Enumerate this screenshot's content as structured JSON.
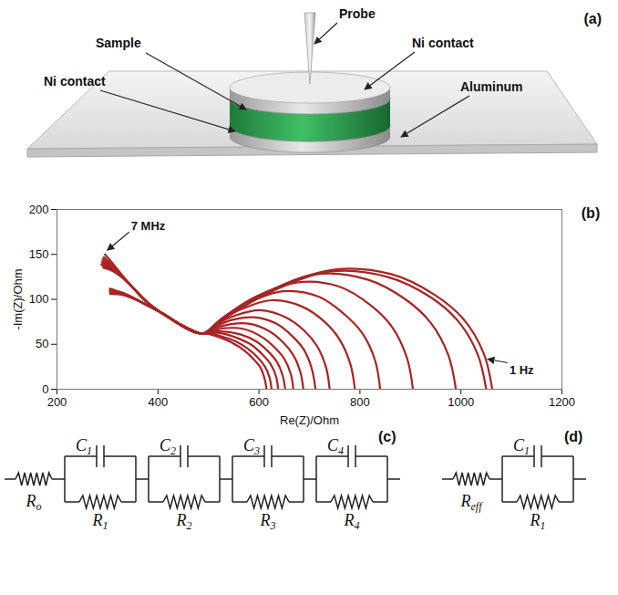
{
  "illustration": {
    "label": "(a)",
    "callouts": [
      {
        "text": "Probe"
      },
      {
        "text": "Ni contact"
      },
      {
        "text": "Sample"
      },
      {
        "text": "Ni contact"
      },
      {
        "text": "Aluminum"
      }
    ]
  },
  "chart_data": {
    "type": "line",
    "panel_label": "(b)",
    "x_label": "Re(Z)/Ohm",
    "y_label": "-Im(Z)/Ohm",
    "xlim": [
      200,
      1200
    ],
    "xticks": [
      200,
      400,
      600,
      800,
      1000,
      1200
    ],
    "ylim": [
      0,
      200
    ],
    "yticks": [
      0,
      50,
      100,
      150,
      200
    ],
    "grid": false,
    "annotations": [
      {
        "text": "7 MHz",
        "x": 297,
        "y": 152
      },
      {
        "text": "1 Hz",
        "x": 1050,
        "y": 35
      }
    ],
    "series": [
      {
        "color": "#a82424",
        "x": [
          295,
          312,
          342,
          380,
          420,
          455,
          475,
          490,
          503,
          521,
          546,
          571,
          590,
          603,
          611,
          615
        ],
        "values": [
          150,
          139,
          118,
          96,
          80,
          68,
          63,
          62,
          61,
          58,
          52,
          43,
          33,
          24,
          12,
          0
        ]
      },
      {
        "color": "#a82424",
        "x": [
          293,
          312,
          342,
          380,
          420,
          455,
          475,
          490,
          504,
          524,
          551,
          578,
          598,
          612,
          621,
          625
        ],
        "values": [
          147,
          137,
          118,
          96,
          80,
          68,
          63,
          62,
          62,
          59,
          54,
          45,
          35,
          25,
          13,
          0
        ]
      },
      {
        "color": "#a82424",
        "x": [
          291,
          312,
          342,
          380,
          420,
          455,
          475,
          490,
          505,
          527,
          557,
          586,
          608,
          623,
          634,
          638
        ],
        "values": [
          145,
          136,
          118,
          96,
          80,
          68,
          63,
          62,
          63,
          62,
          57,
          49,
          38,
          28,
          14,
          0
        ]
      },
      {
        "color": "#a82424",
        "x": [
          290,
          312,
          342,
          380,
          420,
          455,
          475,
          490,
          506,
          531,
          563,
          595,
          620,
          636,
          647,
          652
        ],
        "values": [
          143,
          135,
          118,
          96,
          80,
          68,
          63,
          62,
          64,
          64,
          61,
          53,
          41,
          30,
          15,
          0
        ]
      },
      {
        "color": "#a82424",
        "x": [
          289,
          312,
          342,
          380,
          420,
          455,
          475,
          490,
          508,
          535,
          570,
          606,
          632,
          650,
          663,
          668
        ],
        "values": [
          141,
          134,
          118,
          96,
          80,
          68,
          63,
          62,
          65,
          68,
          67,
          58,
          46,
          34,
          17,
          0
        ]
      },
      {
        "color": "#a82424",
        "x": [
          288,
          312,
          342,
          380,
          420,
          455,
          475,
          490,
          510,
          540,
          579,
          619,
          648,
          668,
          682,
          688
        ],
        "values": [
          139,
          133,
          118,
          96,
          80,
          68,
          63,
          62,
          67,
          72,
          73,
          65,
          52,
          38,
          19,
          0
        ]
      },
      {
        "color": "#a82424",
        "x": [
          290,
          312,
          342,
          380,
          420,
          455,
          475,
          490,
          512,
          546,
          590,
          634,
          668,
          690,
          705,
          712
        ],
        "values": [
          137,
          132,
          118,
          96,
          80,
          68,
          63,
          62,
          69,
          77,
          80,
          73,
          58,
          43,
          22,
          0
        ]
      },
      {
        "color": "#a82424",
        "x": [
          292,
          312,
          342,
          380,
          420,
          455,
          475,
          490,
          515,
          553,
          603,
          653,
          690,
          715,
          733,
          740
        ],
        "values": [
          135,
          131,
          118,
          96,
          80,
          68,
          63,
          62,
          72,
          82,
          88,
          80,
          65,
          48,
          24,
          0
        ]
      },
      {
        "color": "#a82424",
        "x": [
          305,
          330,
          370,
          410,
          445,
          470,
          490,
          520,
          565,
          625,
          685,
          730,
          760,
          781,
          790
        ],
        "values": [
          112,
          107,
          96,
          84,
          72,
          65,
          62,
          75,
          89,
          99,
          92,
          75,
          55,
          28,
          0
        ]
      },
      {
        "color": "#a82424",
        "x": [
          305,
          330,
          370,
          410,
          445,
          470,
          490,
          525,
          578,
          648,
          718,
          770,
          805,
          830,
          840
        ],
        "values": [
          111,
          107,
          96,
          84,
          72,
          65,
          62,
          78,
          96,
          109,
          103,
          83,
          62,
          32,
          0
        ]
      },
      {
        "color": "#a82424",
        "x": [
          305,
          330,
          370,
          410,
          445,
          470,
          490,
          532,
          594,
          677,
          760,
          822,
          864,
          893,
          905
        ],
        "values": [
          110,
          107,
          96,
          84,
          72,
          65,
          62,
          81,
          103,
          119,
          114,
          93,
          69,
          35,
          0
        ]
      },
      {
        "color": "#a82424",
        "x": [
          305,
          330,
          370,
          410,
          445,
          470,
          490,
          540,
          615,
          715,
          815,
          890,
          940,
          975,
          990
        ],
        "values": [
          109,
          107,
          96,
          84,
          72,
          65,
          62,
          83,
          108,
          128,
          122,
          100,
          74,
          38,
          0
        ]
      },
      {
        "color": "#a82424",
        "x": [
          305,
          330,
          370,
          410,
          445,
          470,
          490,
          546,
          630,
          742,
          854,
          938,
          994,
          1033,
          1050
        ],
        "values": [
          108,
          106,
          96,
          84,
          72,
          65,
          62,
          84,
          110,
          131,
          125,
          103,
          76,
          39,
          0
        ]
      },
      {
        "color": "#a82424",
        "x": [
          305,
          330,
          370,
          410,
          445,
          470,
          490,
          547,
          633,
          747,
          862,
          948,
          1005,
          1045,
          1062
        ],
        "values": [
          106,
          105,
          96,
          84,
          72,
          65,
          62,
          85,
          112,
          133,
          128,
          105,
          78,
          40,
          0
        ]
      }
    ]
  },
  "circuits": [
    {
      "label": "(c)",
      "series_resistor": {
        "symbol": "R",
        "sub": "o"
      },
      "rc_elements": [
        {
          "capacitor": {
            "symbol": "C",
            "sub": "1"
          },
          "resistor": {
            "symbol": "R",
            "sub": "1"
          }
        },
        {
          "capacitor": {
            "symbol": "C",
            "sub": "2"
          },
          "resistor": {
            "symbol": "R",
            "sub": "2"
          }
        },
        {
          "capacitor": {
            "symbol": "C",
            "sub": "3"
          },
          "resistor": {
            "symbol": "R",
            "sub": "3"
          }
        },
        {
          "capacitor": {
            "symbol": "C",
            "sub": "4"
          },
          "resistor": {
            "symbol": "R",
            "sub": "4"
          }
        }
      ]
    },
    {
      "label": "(d)",
      "series_resistor": {
        "symbol": "R",
        "sub": "eff"
      },
      "rc_elements": [
        {
          "capacitor": {
            "symbol": "C",
            "sub": "1"
          },
          "resistor": {
            "symbol": "R",
            "sub": "1"
          }
        }
      ]
    }
  ]
}
